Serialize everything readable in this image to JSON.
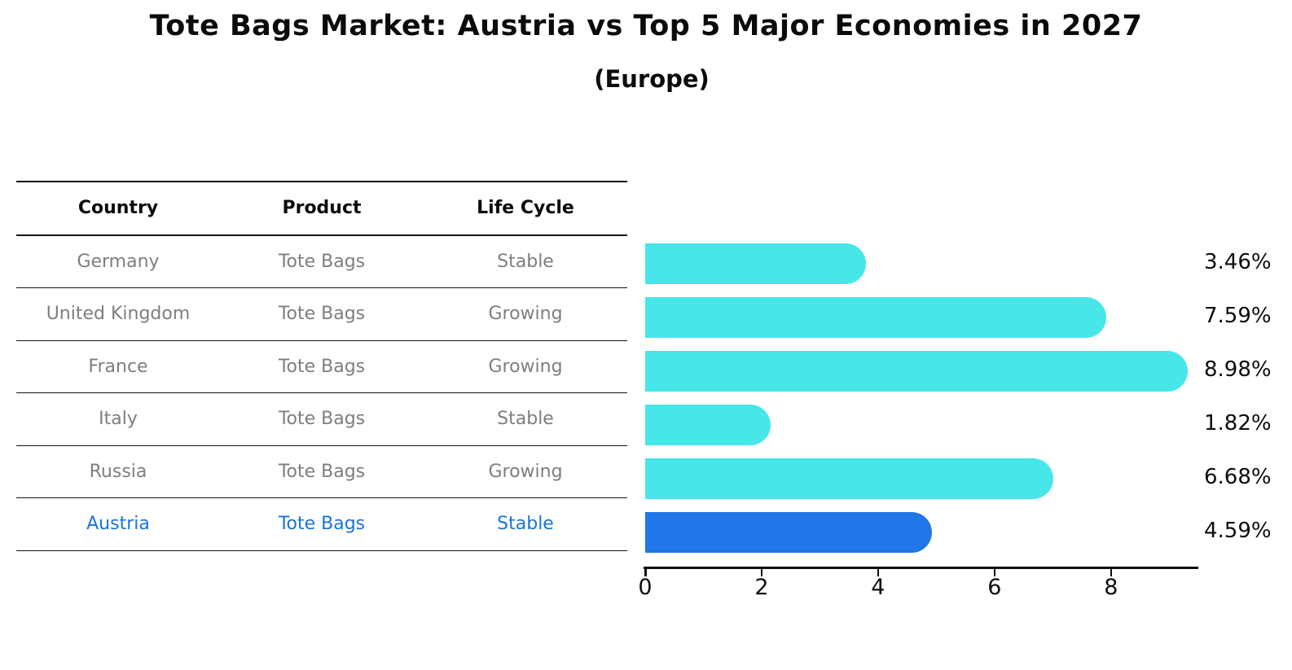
{
  "header": {
    "title": "Tote Bags Market: Austria vs Top 5 Major Economies in 2027",
    "subtitle": "(Europe)"
  },
  "table": {
    "columns": [
      "Country",
      "Product",
      "Life Cycle"
    ],
    "rows": [
      {
        "country": "Germany",
        "product": "Tote Bags",
        "life_cycle": "Stable",
        "highlight": false
      },
      {
        "country": "United Kingdom",
        "product": "Tote Bags",
        "life_cycle": "Growing",
        "highlight": false
      },
      {
        "country": "France",
        "product": "Tote Bags",
        "life_cycle": "Growing",
        "highlight": false
      },
      {
        "country": "Italy",
        "product": "Tote Bags",
        "life_cycle": "Stable",
        "highlight": false
      },
      {
        "country": "Russia",
        "product": "Tote Bags",
        "life_cycle": "Growing",
        "highlight": false
      },
      {
        "country": "Austria",
        "product": "Tote Bags",
        "life_cycle": "Stable",
        "highlight": true
      }
    ]
  },
  "chart_data": {
    "type": "bar",
    "orientation": "horizontal",
    "title": "Tote Bags Market: Austria vs Top 5 Major Economies in 2027",
    "subtitle": "(Europe)",
    "categories": [
      "Germany",
      "United Kingdom",
      "France",
      "Italy",
      "Russia",
      "Austria"
    ],
    "values": [
      3.46,
      7.59,
      8.98,
      1.82,
      6.68,
      4.59
    ],
    "value_labels": [
      "3.46%",
      "7.59%",
      "8.98%",
      "1.82%",
      "6.68%",
      "4.59%"
    ],
    "highlight_index": 5,
    "xticks": [
      0,
      2,
      4,
      6,
      8
    ],
    "xtick_labels": [
      "0",
      "2",
      "4",
      "6",
      "8"
    ],
    "xlim": [
      0,
      9.5
    ],
    "grid": false,
    "legend": false,
    "xlabel": "",
    "ylabel": ""
  },
  "colors": {
    "bar_cyan": "#46e6e9",
    "bar_blue": "#2176e8",
    "highlight_text_blue": "#1b74d4",
    "text_gray": "#7e7e7e",
    "text_black": "#0b0b0b"
  }
}
